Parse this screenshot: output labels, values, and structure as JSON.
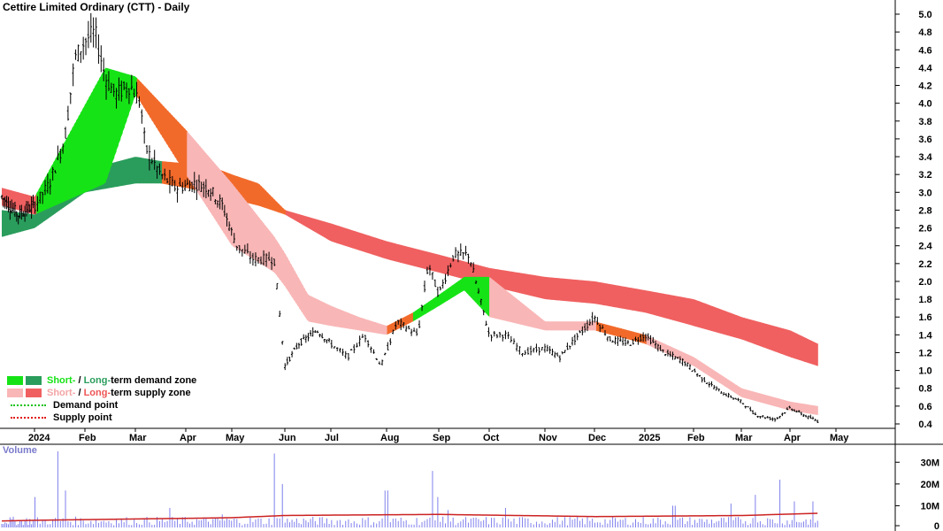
{
  "title": "Cettire Limited Ordinary (CTT) - Daily",
  "volume_label": "Volume",
  "legend": {
    "zone_short": "Short-",
    "zone_sep": " / ",
    "zone_long": "Long-",
    "demand_rest": "term demand zone",
    "supply_rest": "term supply zone",
    "demand_point": "Demand point",
    "supply_point": "Supply point"
  },
  "colors": {
    "short_demand": "#16e316",
    "long_demand": "#2a9d5c",
    "short_supply": "#f9b6b6",
    "long_supply": "#f06060",
    "transition": "#f26a2a",
    "demand_point": "#16c216",
    "supply_point": "#e01010",
    "volume_bar": "#8080ee",
    "volume_avg": "#cc2222"
  },
  "chart_data": {
    "type": "candlestick",
    "price_axis": {
      "min": 0.4,
      "max": 5.0,
      "ticks": [
        "5.0",
        "4.8",
        "4.6",
        "4.4",
        "4.2",
        "4.0",
        "3.8",
        "3.6",
        "3.4",
        "3.2",
        "3.0",
        "2.8",
        "2.6",
        "2.4",
        "2.2",
        "2.0",
        "1.8",
        "1.6",
        "1.4",
        "1.2",
        "1.0",
        "0.8",
        "0.6",
        "0.4"
      ]
    },
    "volume_axis": {
      "ticks": [
        "30M",
        "20M",
        "10M",
        "0"
      ]
    },
    "x_axis": {
      "labels": [
        "2024",
        "Feb",
        "Mar",
        "Apr",
        "May",
        "Jun",
        "Jul",
        "Aug",
        "Sep",
        "Oct",
        "Nov",
        "Dec",
        "2025",
        "Feb",
        "Mar",
        "Apr",
        "May"
      ]
    },
    "price_path": [
      [
        0,
        2.95
      ],
      [
        0.5,
        2.75
      ],
      [
        1,
        2.85
      ],
      [
        1.3,
        3.1
      ],
      [
        1.6,
        3.6
      ],
      [
        1.8,
        4.5
      ],
      [
        2,
        4.7
      ],
      [
        2.2,
        4.8
      ],
      [
        2.4,
        4.3
      ],
      [
        2.6,
        4.1
      ],
      [
        2.9,
        4.2
      ],
      [
        3.1,
        4.0
      ],
      [
        3.2,
        3.5
      ],
      [
        3.5,
        3.2
      ],
      [
        3.8,
        3.05
      ],
      [
        4.2,
        3.1
      ],
      [
        4.5,
        3.05
      ],
      [
        4.8,
        2.85
      ],
      [
        5.1,
        2.4
      ],
      [
        5.4,
        2.25
      ],
      [
        5.8,
        2.25
      ],
      [
        6.0,
        1.05
      ],
      [
        6.3,
        1.3
      ],
      [
        6.7,
        1.45
      ],
      [
        7.0,
        1.3
      ],
      [
        7.3,
        1.15
      ],
      [
        7.6,
        1.4
      ],
      [
        7.9,
        1.05
      ],
      [
        8.2,
        1.55
      ],
      [
        8.6,
        1.4
      ],
      [
        8.8,
        2.2
      ],
      [
        9.0,
        1.85
      ],
      [
        9.3,
        2.3
      ],
      [
        9.6,
        2.3
      ],
      [
        9.8,
        1.85
      ],
      [
        10.0,
        1.4
      ],
      [
        10.3,
        1.4
      ],
      [
        10.6,
        1.2
      ],
      [
        11.0,
        1.25
      ],
      [
        11.3,
        1.15
      ],
      [
        11.6,
        1.35
      ],
      [
        12.0,
        1.6
      ],
      [
        12.3,
        1.35
      ],
      [
        12.7,
        1.3
      ],
      [
        13.0,
        1.4
      ],
      [
        13.4,
        1.2
      ],
      [
        13.8,
        1.1
      ],
      [
        14.2,
        0.9
      ],
      [
        14.6,
        0.75
      ],
      [
        15.0,
        0.65
      ],
      [
        15.3,
        0.5
      ],
      [
        15.7,
        0.45
      ],
      [
        16.0,
        0.58
      ],
      [
        16.3,
        0.5
      ],
      [
        16.6,
        0.43
      ]
    ],
    "short_term_zone": [
      [
        0,
        2.85,
        3.05,
        "long-supply"
      ],
      [
        1,
        2.75,
        2.95,
        "short-demand"
      ],
      [
        2.4,
        3.1,
        4.4,
        "short-demand"
      ],
      [
        3,
        4.1,
        4.3,
        "transition"
      ],
      [
        4,
        3.2,
        3.7,
        "short-supply"
      ],
      [
        5,
        2.4,
        3.1,
        "short-supply"
      ],
      [
        5.8,
        2.1,
        2.5,
        "short-supply"
      ],
      [
        6.5,
        1.55,
        1.85,
        "short-supply"
      ],
      [
        7.5,
        1.45,
        1.6,
        "short-supply"
      ],
      [
        8,
        1.4,
        1.5,
        "transition"
      ],
      [
        8.5,
        1.55,
        1.65,
        "short-demand"
      ],
      [
        9.5,
        1.9,
        2.05,
        "short-demand"
      ],
      [
        10,
        1.6,
        2.05,
        "short-supply"
      ],
      [
        11,
        1.45,
        1.55,
        "short-supply"
      ],
      [
        12,
        1.45,
        1.55,
        "transition"
      ],
      [
        13,
        1.3,
        1.4,
        "short-supply"
      ],
      [
        14,
        1.05,
        1.15,
        "short-supply"
      ],
      [
        15,
        0.7,
        0.8,
        "short-supply"
      ],
      [
        16,
        0.55,
        0.65,
        "short-supply"
      ],
      [
        16.6,
        0.5,
        0.6,
        "short-supply"
      ]
    ],
    "long_term_zone": [
      [
        0,
        2.5,
        2.8,
        "long-demand"
      ],
      [
        1,
        2.6,
        2.75,
        "long-demand"
      ],
      [
        2,
        3.0,
        3.25,
        "long-demand"
      ],
      [
        3,
        3.1,
        3.4,
        "long-demand"
      ],
      [
        3.5,
        3.1,
        3.35,
        "transition"
      ],
      [
        4.5,
        3.0,
        3.3,
        "transition"
      ],
      [
        5.5,
        2.85,
        3.1,
        "transition"
      ],
      [
        6,
        2.75,
        2.8,
        "long-supply"
      ],
      [
        7,
        2.45,
        2.65,
        "long-supply"
      ],
      [
        8,
        2.25,
        2.45,
        "long-supply"
      ],
      [
        9,
        2.1,
        2.3,
        "long-supply"
      ],
      [
        10,
        1.95,
        2.15,
        "long-supply"
      ],
      [
        11,
        1.8,
        2.05,
        "long-supply"
      ],
      [
        12,
        1.75,
        2.0,
        "long-supply"
      ],
      [
        13,
        1.65,
        1.9,
        "long-supply"
      ],
      [
        14,
        1.5,
        1.8,
        "long-supply"
      ],
      [
        15,
        1.35,
        1.6,
        "long-supply"
      ],
      [
        16,
        1.15,
        1.45,
        "long-supply"
      ],
      [
        16.6,
        1.05,
        1.3,
        "long-supply"
      ]
    ],
    "volume_spikes": [
      [
        1.0,
        14
      ],
      [
        1.45,
        35
      ],
      [
        1.6,
        17
      ],
      [
        3.7,
        9
      ],
      [
        4.8,
        6
      ],
      [
        5.8,
        34
      ],
      [
        5.95,
        20
      ],
      [
        8.0,
        17
      ],
      [
        8.9,
        26
      ],
      [
        9.0,
        14
      ],
      [
        9.2,
        8
      ],
      [
        10.3,
        9
      ],
      [
        13.6,
        10
      ],
      [
        14.8,
        11
      ],
      [
        15.3,
        15
      ],
      [
        15.8,
        22
      ],
      [
        16.1,
        12
      ],
      [
        16.5,
        12
      ]
    ],
    "volume_avg": [
      [
        0,
        3
      ],
      [
        5,
        4.5
      ],
      [
        6,
        5.5
      ],
      [
        9,
        6
      ],
      [
        12,
        5
      ],
      [
        15,
        5.5
      ],
      [
        16.6,
        6.5
      ]
    ]
  }
}
